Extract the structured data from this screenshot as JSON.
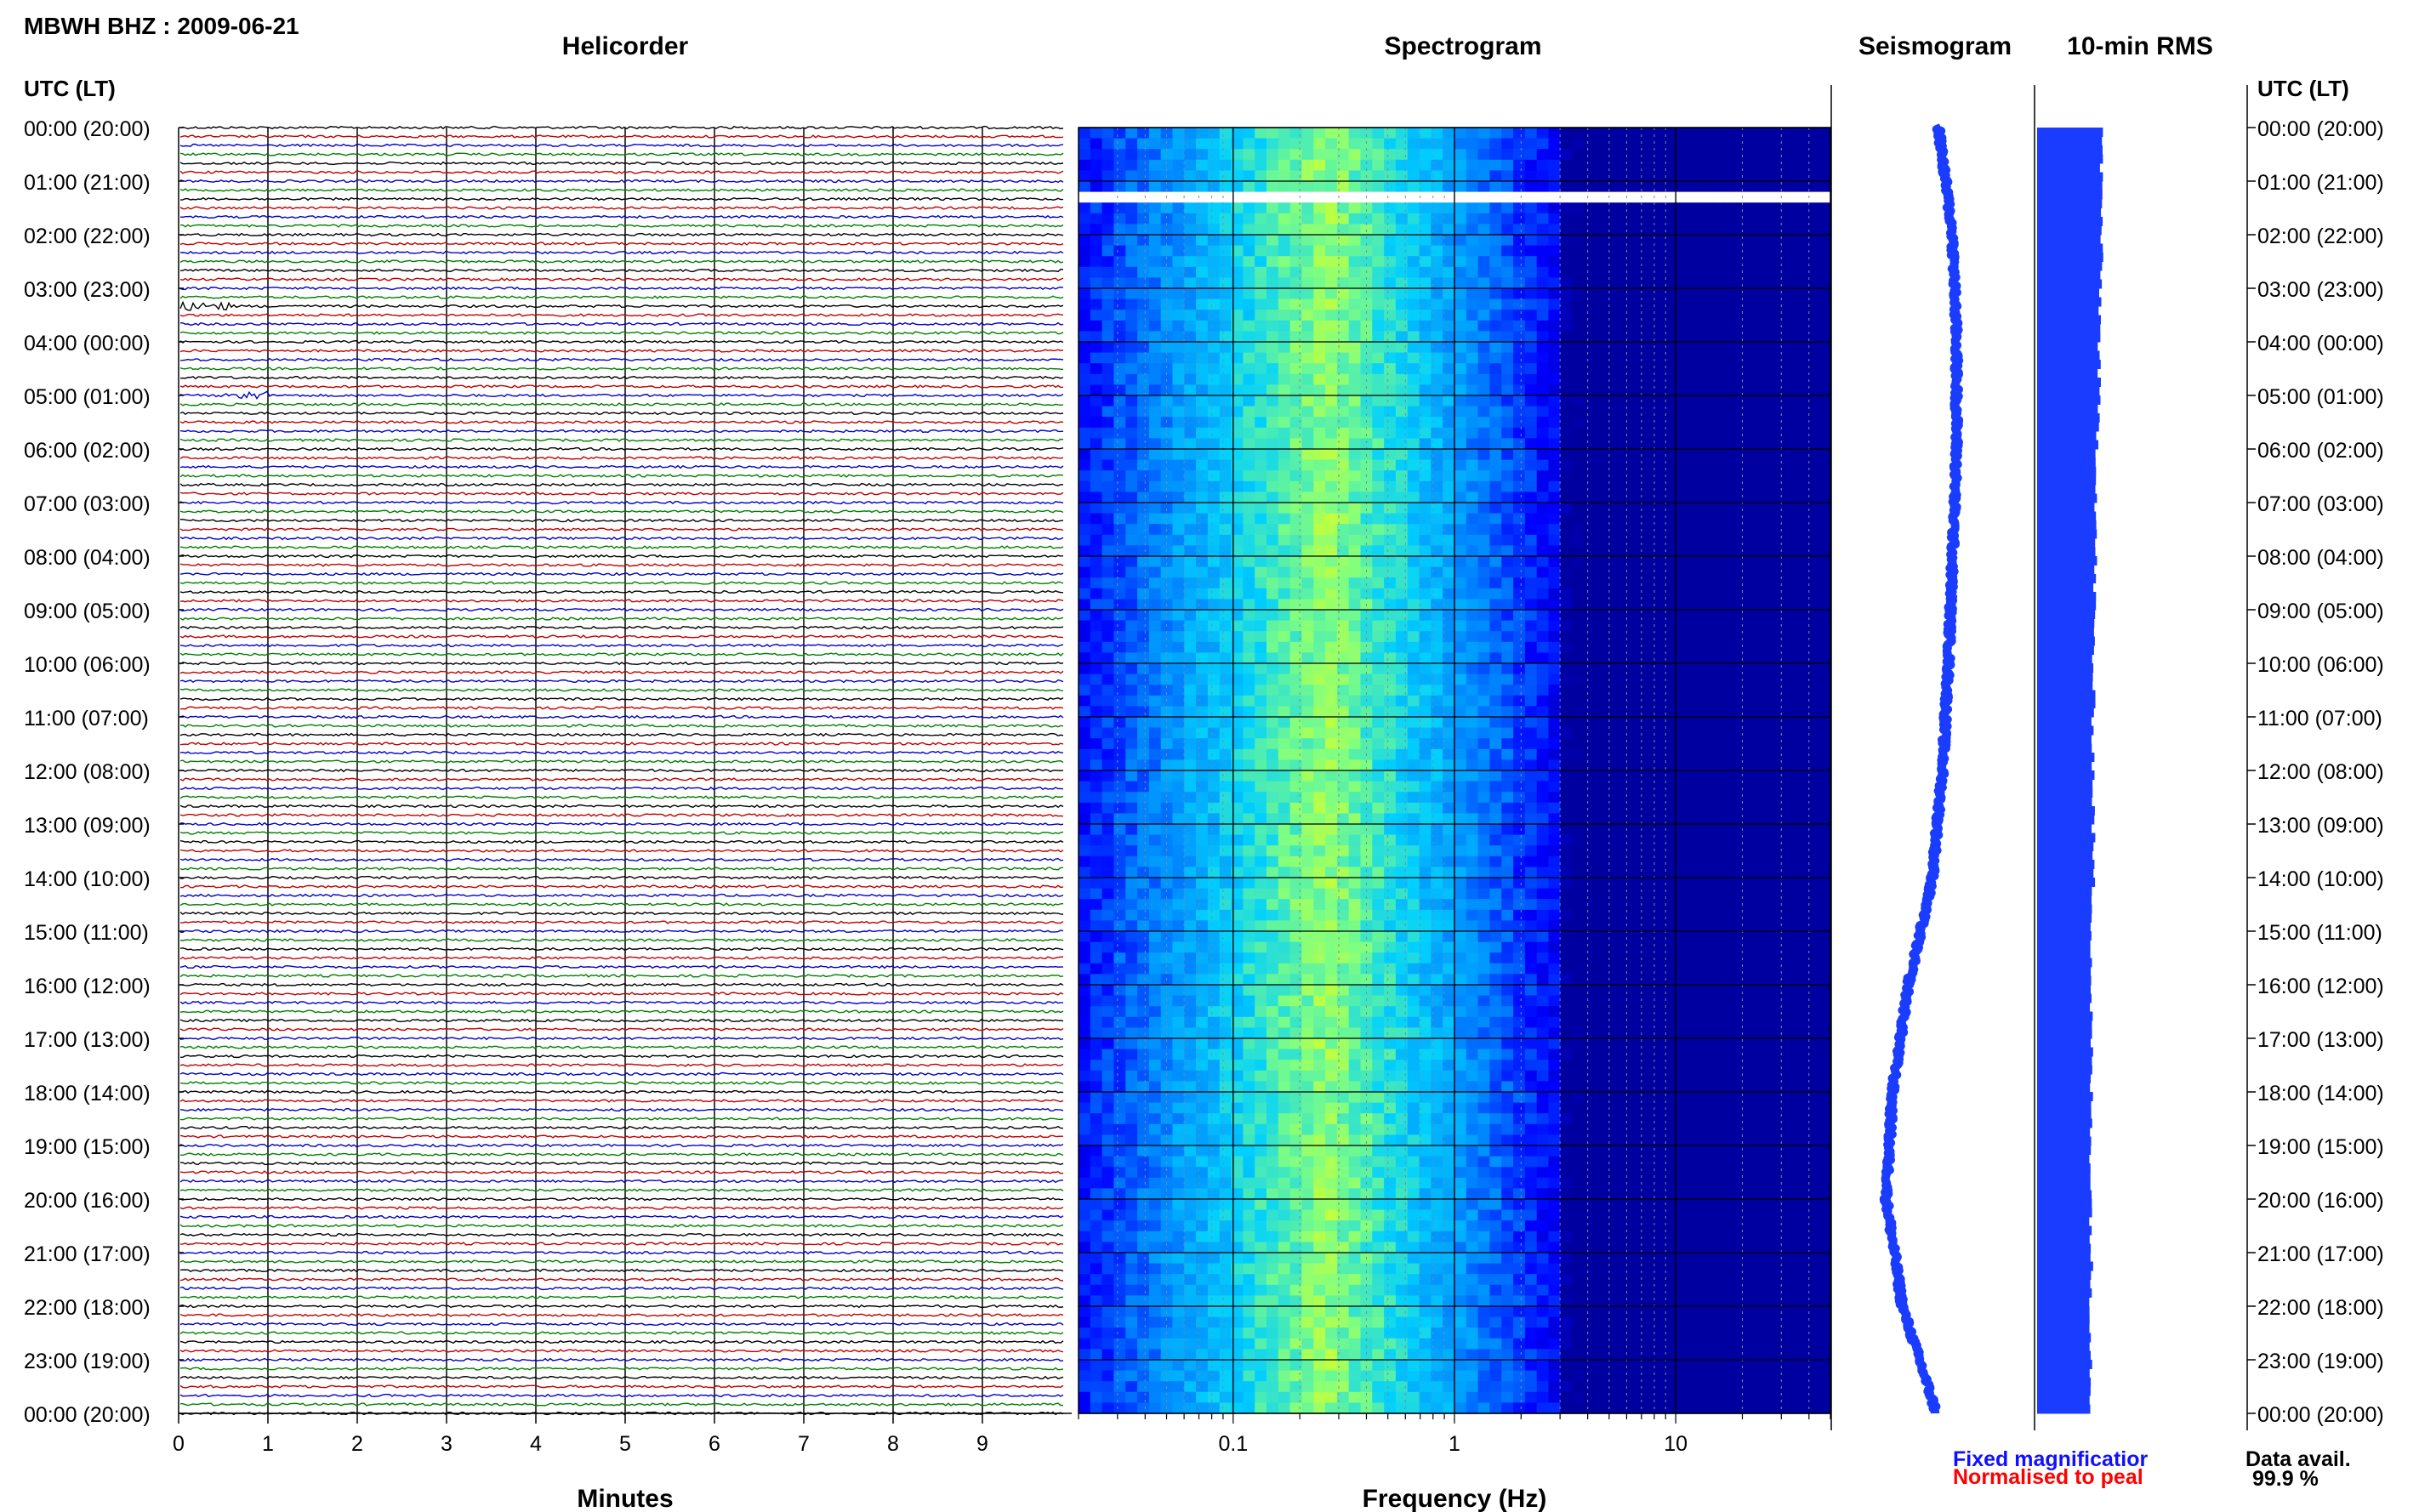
{
  "page": {
    "station_title": "MBWH BHZ : 2009-06-21",
    "panel_titles": {
      "helicorder": "Helicorder",
      "spectrogram": "Spectrogram",
      "seismogram": "Seismogram",
      "rms": "10-min RMS"
    },
    "time_axis_label": "UTC (LT)",
    "legend": {
      "fixed": "Fixed magnificatior",
      "normalised": "Normalised to peal",
      "data_avail_label": "Data avail.",
      "data_avail_value": "99.9 %"
    },
    "colors": {
      "fixed_text": "#1010ff",
      "normalised_text": "#ff0000",
      "trace_colors": [
        "#000000",
        "#c00000",
        "#0000c8",
        "#008000"
      ],
      "seismogram": "#1a3cff",
      "rms_fill": "#1a3cff",
      "spectrogram_ramp": [
        "#0000a0",
        "#0000ff",
        "#0080ff",
        "#00d0ff",
        "#80ff80",
        "#ffff00"
      ]
    }
  },
  "chart_data": [
    {
      "name": "helicorder",
      "type": "line",
      "title": "Helicorder",
      "xlabel": "Minutes",
      "xticks": [
        "0",
        "1",
        "2",
        "3",
        "4",
        "5",
        "6",
        "7",
        "8",
        "9"
      ],
      "xlim": [
        0,
        10
      ],
      "ylabel": "UTC (LT)",
      "rows_per_hour": 6,
      "yticks": [
        "00:00 (20:00)",
        "01:00 (21:00)",
        "02:00 (22:00)",
        "03:00 (23:00)",
        "04:00 (00:00)",
        "05:00 (01:00)",
        "06:00 (02:00)",
        "07:00 (03:00)",
        "08:00 (04:00)",
        "09:00 (05:00)",
        "10:00 (06:00)",
        "11:00 (07:00)",
        "12:00 (08:00)",
        "13:00 (09:00)",
        "14:00 (10:00)",
        "15:00 (11:00)",
        "16:00 (12:00)",
        "17:00 (13:00)",
        "18:00 (14:00)",
        "19:00 (15:00)",
        "20:00 (16:00)",
        "21:00 (17:00)",
        "22:00 (18:00)",
        "23:00 (19:00)",
        "00:00 (20:00)"
      ],
      "events": [
        {
          "hour": 3.333,
          "minute_start": 0.0,
          "minute_end": 0.6
        },
        {
          "hour": 5.0,
          "minute_start": 0.5,
          "minute_end": 1.0
        }
      ]
    },
    {
      "name": "spectrogram",
      "type": "heatmap",
      "title": "Spectrogram",
      "xlabel": "Frequency (Hz)",
      "xscale": "log",
      "xlim": [
        0.02,
        50
      ],
      "xticks": [
        {
          "value": 0.1,
          "label": "0.1"
        },
        {
          "value": 1,
          "label": "1"
        },
        {
          "value": 10,
          "label": "10"
        }
      ],
      "gap_hour": 1.35,
      "spectral_peak_hz": 0.25
    },
    {
      "name": "seismogram",
      "type": "line",
      "title": "Seismogram",
      "hours": [
        0,
        2,
        4,
        6,
        8,
        10,
        12,
        14,
        16,
        18,
        20,
        22,
        24
      ],
      "offset": [
        0.53,
        0.6,
        0.62,
        0.62,
        0.6,
        0.58,
        0.55,
        0.5,
        0.38,
        0.3,
        0.27,
        0.35,
        0.52
      ]
    },
    {
      "name": "rms",
      "type": "bar",
      "title": "10-min RMS",
      "hours": [
        0,
        2,
        4,
        6,
        8,
        10,
        12,
        14,
        16,
        18,
        20,
        22,
        24
      ],
      "relative_rms": [
        0.31,
        0.31,
        0.3,
        0.29,
        0.28,
        0.27,
        0.27,
        0.27,
        0.26,
        0.26,
        0.26,
        0.26,
        0.26
      ]
    }
  ]
}
